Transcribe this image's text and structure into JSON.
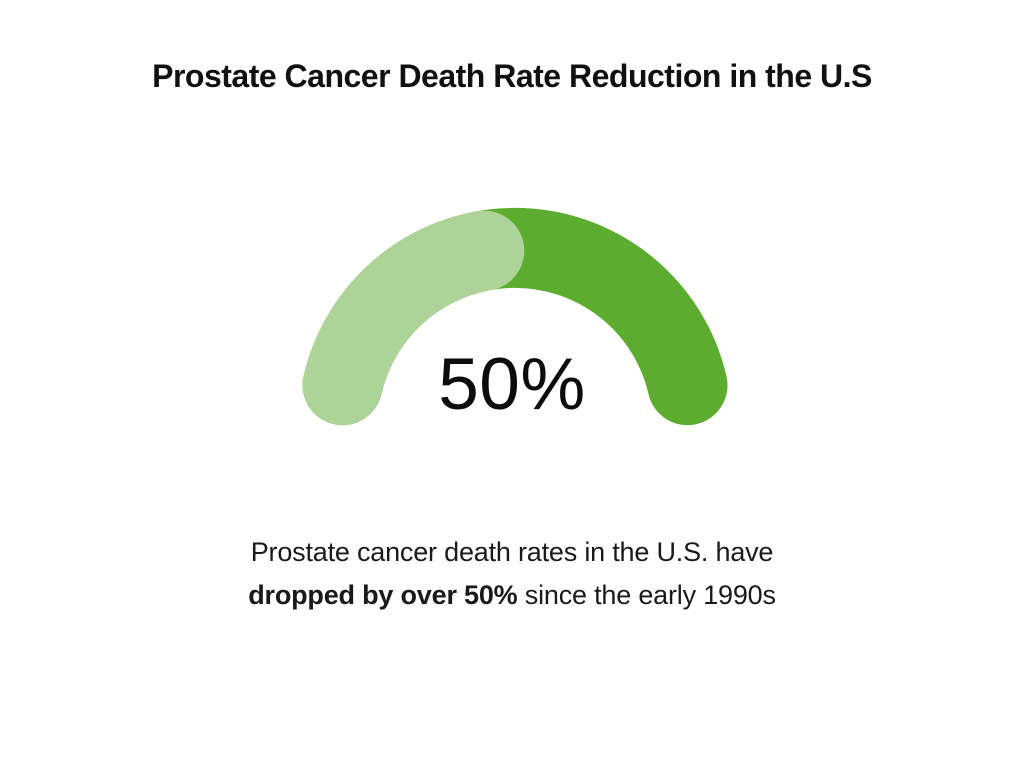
{
  "title": "Prostate Cancer Death Rate Reduction in the U.S",
  "chart_data": {
    "type": "gauge",
    "value_percent": 50,
    "max_percent": 100,
    "center_label": "50%",
    "track_color": "#5bac2f",
    "progress_color": "#aed399",
    "title": "Prostate Cancer Death Rate Reduction in the U.S",
    "legend": "none",
    "annotation": "Prostate cancer death rates in the U.S. have dropped by over 50% since the early 1990s"
  },
  "caption": {
    "line1": "Prostate cancer death rates in the U.S. have",
    "line2_bold": "dropped by over 50%",
    "line2_rest": " since the early 1990s"
  }
}
